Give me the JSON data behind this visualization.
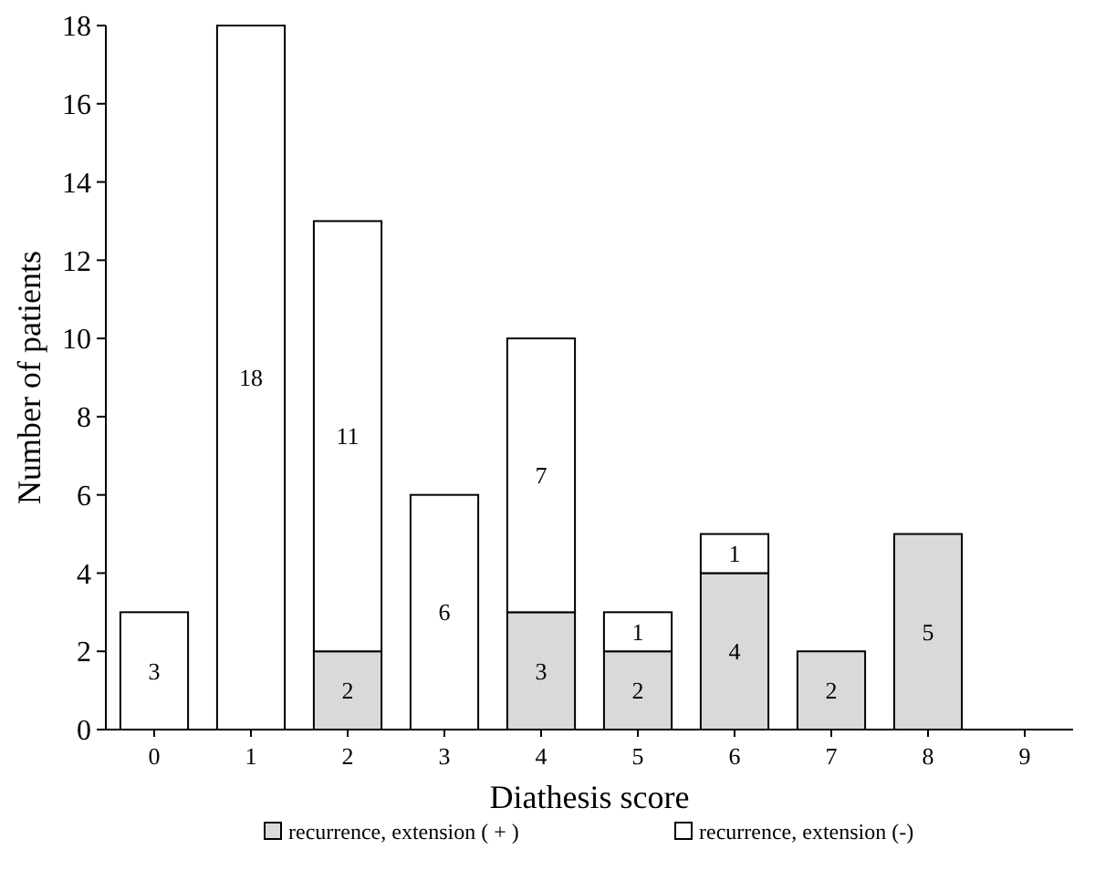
{
  "chart_data": {
    "type": "bar",
    "stacked": true,
    "xlabel": "Diathesis score",
    "ylabel": "Number of patients",
    "categories": [
      "0",
      "1",
      "2",
      "3",
      "4",
      "5",
      "6",
      "7",
      "8",
      "9"
    ],
    "series": [
      {
        "name": "recurrence, extension ( + )",
        "color": "#d9d9d9",
        "values": [
          0,
          0,
          2,
          0,
          3,
          2,
          4,
          2,
          5,
          0
        ],
        "value_labels": [
          null,
          null,
          "2",
          null,
          "3",
          "2",
          "4",
          "2",
          "5",
          null
        ]
      },
      {
        "name": "recurrence, extension (-)",
        "color": "#ffffff",
        "values": [
          3,
          18,
          11,
          6,
          7,
          1,
          1,
          0,
          0,
          0
        ],
        "value_labels": [
          "3",
          "18",
          "11",
          "6",
          "7",
          "1",
          "1",
          null,
          null,
          null
        ]
      }
    ],
    "ylim": [
      0,
      18
    ],
    "yticks": [
      0,
      2,
      4,
      6,
      8,
      10,
      12,
      14,
      16,
      18
    ],
    "grid": false,
    "legend": "bottom"
  }
}
